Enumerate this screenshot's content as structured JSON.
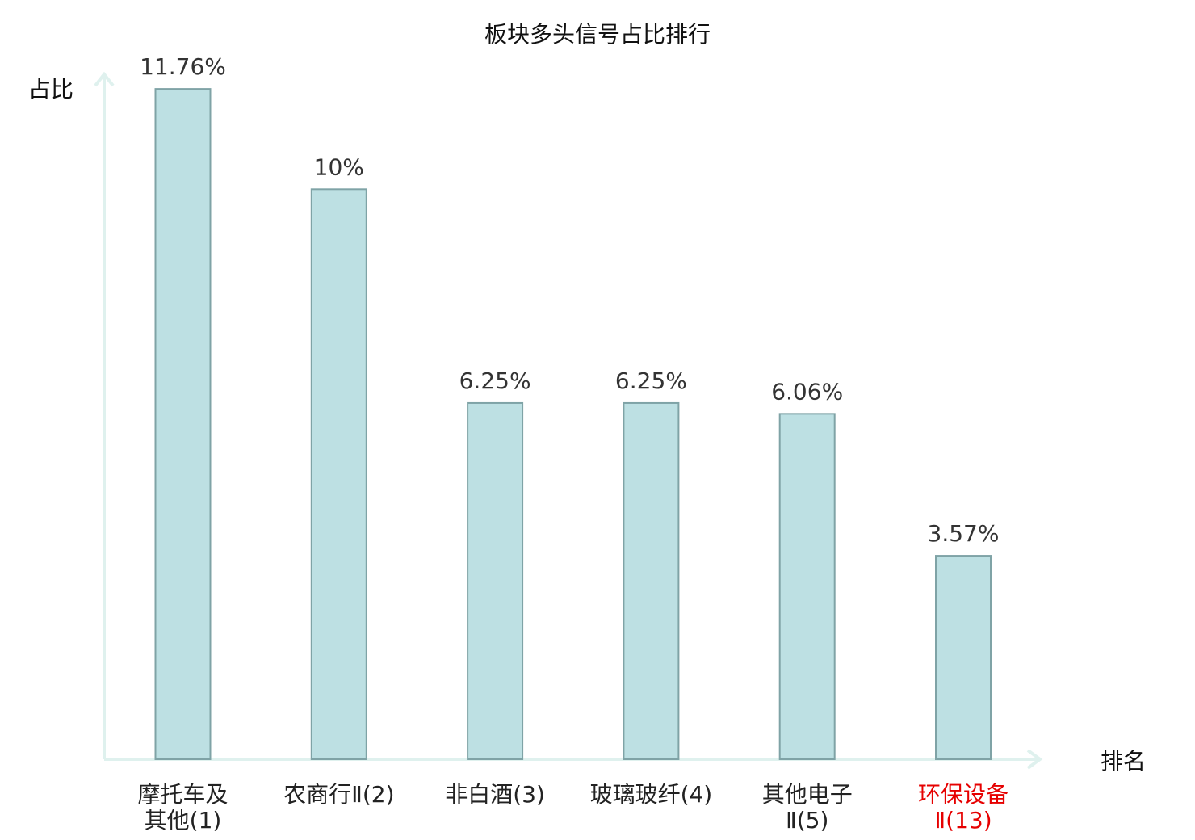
{
  "chart_data": {
    "type": "bar",
    "title": "板块多头信号占比排行",
    "ylabel": "占比",
    "xlabel": "排名",
    "ylim": [
      0,
      12.3
    ],
    "categories": [
      {
        "label_lines": [
          "摩托车及",
          "其他(1)"
        ],
        "highlight": false
      },
      {
        "label_lines": [
          "农商行Ⅱ(2)"
        ],
        "highlight": false
      },
      {
        "label_lines": [
          "非白酒(3)"
        ],
        "highlight": false
      },
      {
        "label_lines": [
          "玻璃玻纤(4)"
        ],
        "highlight": false
      },
      {
        "label_lines": [
          "其他电子",
          "Ⅱ(5)"
        ],
        "highlight": false
      },
      {
        "label_lines": [
          "环保设备",
          "Ⅱ(13)"
        ],
        "highlight": true
      }
    ],
    "values": [
      11.76,
      10,
      6.25,
      6.25,
      6.06,
      3.57
    ],
    "value_labels": [
      "11.76%",
      "10%",
      "6.25%",
      "6.25%",
      "6.06%",
      "3.57%"
    ],
    "grid": false,
    "colors": {
      "bar_fill": "#bde0e3",
      "bar_stroke": "#7fa3a6",
      "axis": "#dff1ee",
      "highlight_text": "#e60000"
    }
  }
}
